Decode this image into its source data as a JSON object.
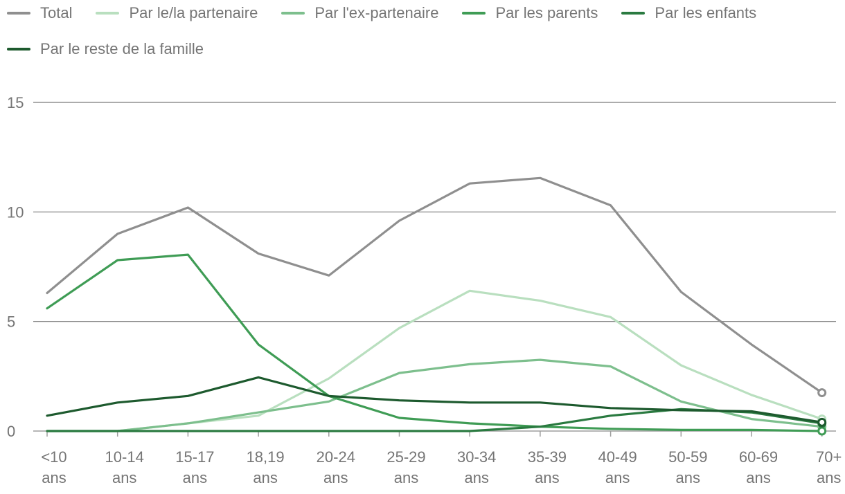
{
  "chart_data": {
    "type": "line",
    "categories": [
      [
        "<10",
        "ans"
      ],
      [
        "10-14",
        "ans"
      ],
      [
        "15-17",
        "ans"
      ],
      [
        "18,19",
        "ans"
      ],
      [
        "20-24",
        "ans"
      ],
      [
        "25-29",
        "ans"
      ],
      [
        "30-34",
        "ans"
      ],
      [
        "35-39",
        "ans"
      ],
      [
        "40-49",
        "ans"
      ],
      [
        "50-59",
        "ans"
      ],
      [
        "60-69",
        "ans"
      ],
      [
        "70+",
        "ans"
      ]
    ],
    "ylim": [
      0,
      15
    ],
    "yticks": [
      0,
      5,
      10,
      15
    ],
    "grid": true,
    "legend_position": "top",
    "series": [
      {
        "name": "Total",
        "color": "#8f8f8f",
        "values": [
          6.3,
          9.0,
          10.2,
          8.1,
          7.1,
          9.6,
          11.3,
          11.55,
          10.3,
          6.35,
          3.95,
          1.75
        ]
      },
      {
        "name": "Par le/la partenaire",
        "color": "#b9dfbf",
        "values": [
          0.0,
          0.0,
          0.35,
          0.7,
          2.4,
          4.7,
          6.4,
          5.95,
          5.2,
          3.0,
          1.65,
          0.55
        ]
      },
      {
        "name": "Par l'ex-partenaire",
        "color": "#7dbf8d",
        "values": [
          0.0,
          0.0,
          0.35,
          0.85,
          1.35,
          2.65,
          3.05,
          3.25,
          2.95,
          1.35,
          0.55,
          0.2
        ]
      },
      {
        "name": "Par les parents",
        "color": "#3f9c55",
        "values": [
          5.6,
          7.8,
          8.05,
          3.95,
          1.6,
          0.6,
          0.35,
          0.2,
          0.1,
          0.05,
          0.05,
          0.0
        ]
      },
      {
        "name": "Par les enfants",
        "color": "#2a7a40",
        "values": [
          0.0,
          0.0,
          0.0,
          0.0,
          0.0,
          0.0,
          0.0,
          0.2,
          0.7,
          1.0,
          0.85,
          0.35
        ]
      },
      {
        "name": "Par le reste de la famille",
        "color": "#1d5a2e",
        "values": [
          0.7,
          1.3,
          1.6,
          2.45,
          1.6,
          1.4,
          1.3,
          1.3,
          1.05,
          0.95,
          0.9,
          0.4
        ]
      }
    ]
  }
}
